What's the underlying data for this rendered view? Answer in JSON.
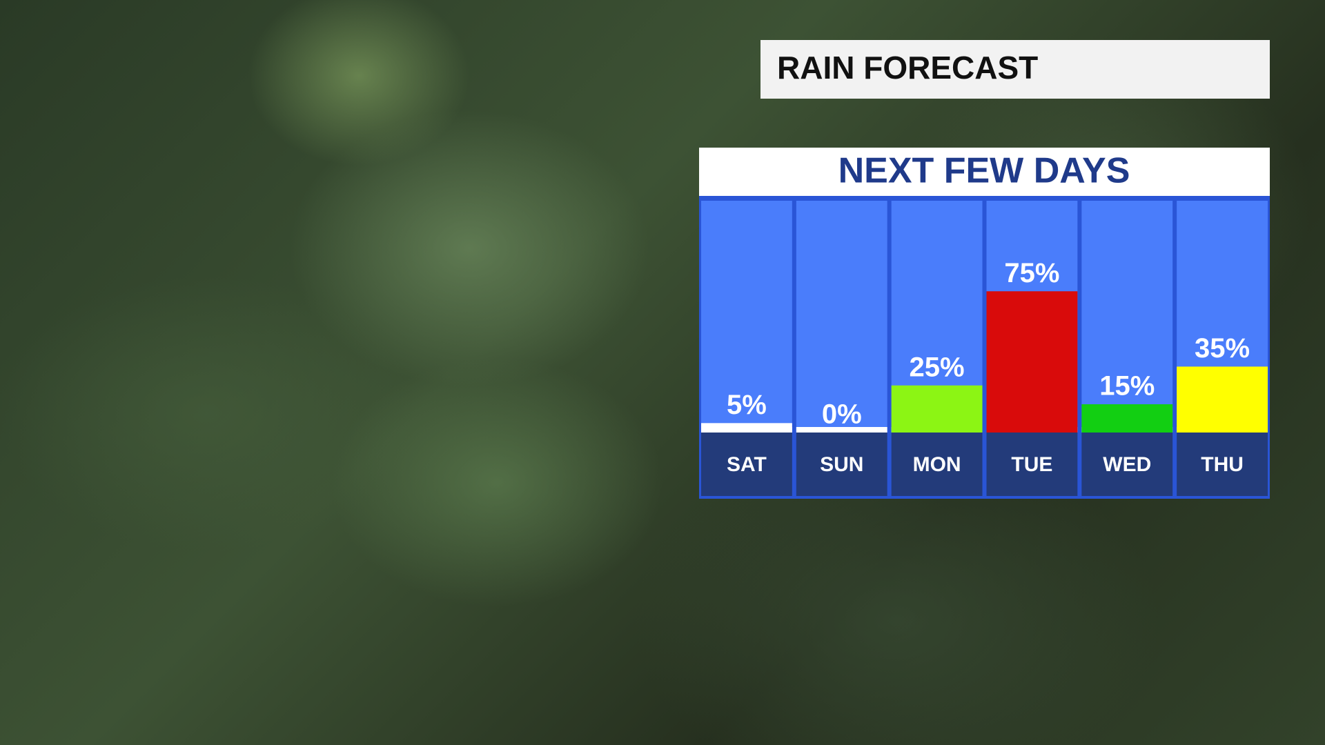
{
  "chart_data": {
    "type": "bar",
    "heading": "RAIN FORECAST",
    "title": "NEXT FEW DAYS",
    "categories": [
      "SAT",
      "SUN",
      "MON",
      "TUE",
      "WED",
      "THU"
    ],
    "values": [
      5,
      0,
      25,
      75,
      15,
      35
    ],
    "value_labels": [
      "5%",
      "0%",
      "25%",
      "75%",
      "15%",
      "35%"
    ],
    "colors": [
      "#ffffff",
      "#ffffff",
      "#8cf514",
      "#d90b0b",
      "#12cf12",
      "#ffff00"
    ]
  }
}
